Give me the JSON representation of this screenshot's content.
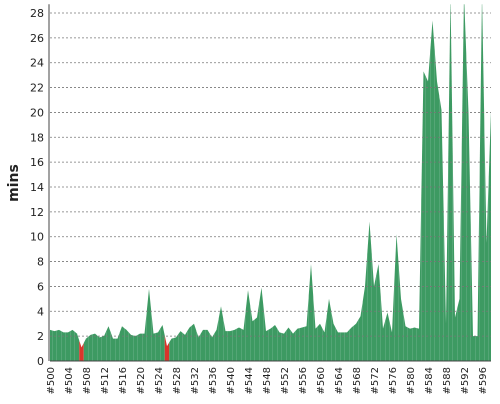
{
  "chart_data": {
    "type": "area",
    "ylabel": "mins",
    "categories": [
      "#500",
      null,
      null,
      null,
      "#504",
      null,
      null,
      null,
      "#508",
      null,
      null,
      null,
      "#512",
      null,
      null,
      null,
      "#516",
      null,
      null,
      null,
      "#520",
      null,
      null,
      null,
      "#524",
      null,
      null,
      null,
      "#528",
      null,
      null,
      null,
      "#532",
      null,
      null,
      null,
      "#536",
      null,
      null,
      null,
      "#540",
      null,
      null,
      null,
      "#544",
      null,
      null,
      null,
      "#548",
      null,
      null,
      null,
      "#552",
      null,
      null,
      null,
      "#556",
      null,
      null,
      null,
      "#560",
      null,
      null,
      null,
      "#564",
      null,
      null,
      null,
      "#568",
      null,
      null,
      null,
      "#572",
      null,
      null,
      null,
      "#576",
      null,
      null,
      null,
      "#580",
      null,
      null,
      null,
      "#584",
      null,
      null,
      null,
      "#588",
      null,
      null,
      null,
      "#592",
      null,
      null,
      null,
      "#596",
      null,
      null
    ],
    "values": [
      2.5,
      2.4,
      2.5,
      2.3,
      2.3,
      2.5,
      2.2,
      1.1,
      1.8,
      2.1,
      2.2,
      1.9,
      2.0,
      2.8,
      1.8,
      1.8,
      2.8,
      2.5,
      2.1,
      2.0,
      2.2,
      2.2,
      5.8,
      2.2,
      2.3,
      2.9,
      1.2,
      1.8,
      1.9,
      2.4,
      2.1,
      2.7,
      3.0,
      1.9,
      2.5,
      2.5,
      1.9,
      2.5,
      4.4,
      2.4,
      2.4,
      2.5,
      2.7,
      2.5,
      5.7,
      3.2,
      3.5,
      5.9,
      2.4,
      2.6,
      2.9,
      2.3,
      2.2,
      2.7,
      2.2,
      2.6,
      2.7,
      2.8,
      7.8,
      2.6,
      3.0,
      2.3,
      5.0,
      3.0,
      2.3,
      2.3,
      2.3,
      2.7,
      3.0,
      3.6,
      6.0,
      11.2,
      6.0,
      7.8,
      2.6,
      3.9,
      2.3,
      10.2,
      5.0,
      2.8,
      2.6,
      2.7,
      2.6,
      23.3,
      22.5,
      27.4,
      22.5,
      20.2,
      3.0,
      29.5,
      3.5,
      5.0,
      29.5,
      20.0,
      2.0,
      2.0,
      29.5,
      9.5,
      20.1
    ],
    "colors": [
      "#3d9a62",
      "#3d9a62",
      "#3d9a62",
      "#3d9a62",
      "#3d9a62",
      "#3d9a62",
      "#3d9a62",
      "#d9342b",
      "#3d9a62",
      "#3d9a62",
      "#3d9a62",
      "#3d9a62",
      "#3d9a62",
      "#3d9a62",
      "#3d9a62",
      "#3d9a62",
      "#3d9a62",
      "#3d9a62",
      "#3d9a62",
      "#3d9a62",
      "#3d9a62",
      "#3d9a62",
      "#3d9a62",
      "#3d9a62",
      "#3d9a62",
      "#3d9a62",
      "#d9342b",
      "#3d9a62",
      "#3d9a62",
      "#3d9a62",
      "#3d9a62",
      "#3d9a62",
      "#3d9a62",
      "#3d9a62",
      "#3d9a62",
      "#3d9a62",
      "#3d9a62",
      "#3d9a62",
      "#3d9a62",
      "#3d9a62",
      "#3d9a62",
      "#3d9a62",
      "#3d9a62",
      "#3d9a62",
      "#3d9a62",
      "#3d9a62",
      "#3d9a62",
      "#3d9a62",
      "#3d9a62",
      "#3d9a62",
      "#3d9a62",
      "#3d9a62",
      "#3d9a62",
      "#3d9a62",
      "#3d9a62",
      "#3d9a62",
      "#3d9a62",
      "#3d9a62",
      "#3d9a62",
      "#3d9a62",
      "#3d9a62",
      "#3d9a62",
      "#3d9a62",
      "#3d9a62",
      "#3d9a62",
      "#3d9a62",
      "#3d9a62",
      "#3d9a62",
      "#3d9a62",
      "#3d9a62",
      "#3d9a62",
      "#3d9a62",
      "#3d9a62",
      "#3d9a62",
      "#3d9a62",
      "#3d9a62",
      "#3d9a62",
      "#3d9a62",
      "#3d9a62",
      "#3d9a62",
      "#3d9a62",
      "#3d9a62",
      "#3d9a62",
      "#3d9a62",
      "#3d9a62",
      "#3d9a62",
      "#3d9a62",
      "#3d9a62",
      "#3d9a62",
      "#3d9a62",
      "#3d9a62",
      "#3d9a62",
      "#3d9a62",
      "#3d9a62",
      "#3d9a62",
      "#3d9a62",
      "#3d9a62",
      "#3d9a62",
      "#3d9a62"
    ],
    "ylim": [
      0,
      28.7
    ],
    "yticks": [
      0,
      2,
      4,
      6,
      8,
      10,
      12,
      14,
      16,
      18,
      20,
      22,
      24,
      26,
      28
    ],
    "grid": true
  }
}
